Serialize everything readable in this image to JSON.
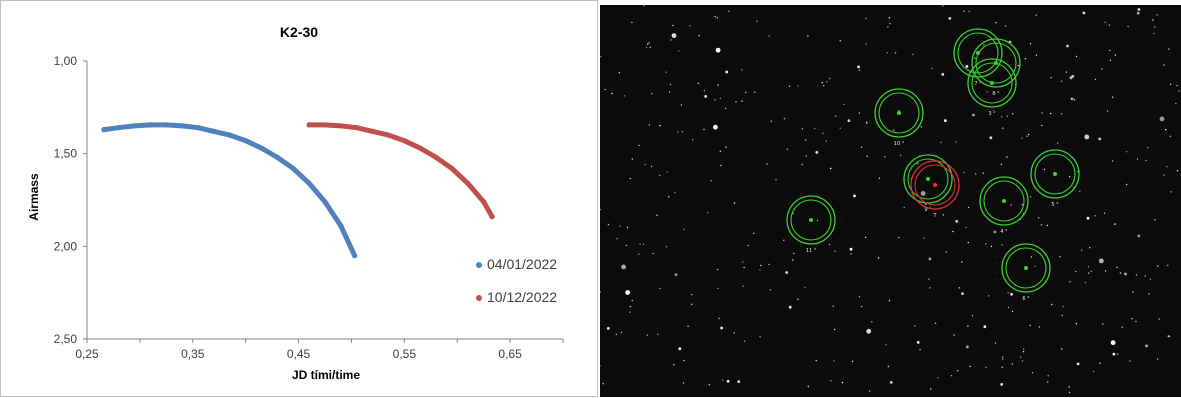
{
  "chart_data": {
    "type": "scatter",
    "title": "K2-30",
    "xlabel": "JD tími/time",
    "ylabel": "Airmass",
    "xlim": [
      0.25,
      0.7
    ],
    "ylim": [
      1.0,
      2.5
    ],
    "y_inverted": true,
    "x_ticks": [
      "0,25",
      "0,35",
      "0,45",
      "0,55",
      "0,65"
    ],
    "y_ticks": [
      "1,00",
      "1,50",
      "2,00",
      "2,50"
    ],
    "legend_position": "right",
    "series": [
      {
        "name": "04/01/2022",
        "color": "#4f81bd",
        "x": [
          0.266,
          0.28,
          0.295,
          0.31,
          0.325,
          0.34,
          0.355,
          0.37,
          0.385,
          0.4,
          0.415,
          0.43,
          0.445,
          0.46,
          0.475,
          0.49,
          0.503
        ],
        "y": [
          1.37,
          1.36,
          1.35,
          1.345,
          1.345,
          1.35,
          1.36,
          1.38,
          1.4,
          1.43,
          1.47,
          1.52,
          1.58,
          1.66,
          1.76,
          1.89,
          2.05
        ]
      },
      {
        "name": "10/12/2022",
        "color": "#c0504d",
        "x": [
          0.46,
          0.475,
          0.49,
          0.505,
          0.52,
          0.535,
          0.55,
          0.565,
          0.58,
          0.595,
          0.61,
          0.625,
          0.633
        ],
        "y": [
          1.345,
          1.345,
          1.35,
          1.36,
          1.38,
          1.4,
          1.43,
          1.47,
          1.52,
          1.58,
          1.66,
          1.76,
          1.84
        ]
      }
    ]
  },
  "sky_image": {
    "background_color": "#0b0b0b",
    "aperture_color": "#39d42f",
    "target_aperture_color": "#e03030",
    "aperture_labels": [
      "10 °",
      "11 °",
      "3 °",
      "4 °",
      "5 °",
      "6 °",
      "7 °",
      "8 °",
      "9 °",
      "T"
    ]
  }
}
